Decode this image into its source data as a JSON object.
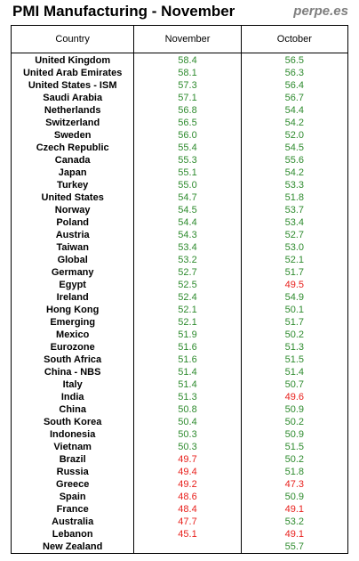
{
  "title": "PMI Manufacturing - November",
  "brand": "perpe.es",
  "colors": {
    "above": "#2e8b2e",
    "below": "#e8201c",
    "text": "#000000",
    "brand": "#7f7f7f"
  },
  "threshold": 50,
  "chart_data": {
    "type": "table",
    "columns": [
      "Country",
      "November",
      "October"
    ],
    "rows": [
      {
        "country": "United Kingdom",
        "november": "58.4",
        "october": "56.5"
      },
      {
        "country": "United Arab Emirates",
        "november": "58.1",
        "october": "56.3"
      },
      {
        "country": "United States - ISM",
        "november": "57.3",
        "october": "56.4"
      },
      {
        "country": "Saudi Arabia",
        "november": "57.1",
        "october": "56.7"
      },
      {
        "country": "Netherlands",
        "november": "56.8",
        "october": "54.4"
      },
      {
        "country": "Switzerland",
        "november": "56.5",
        "october": "54.2"
      },
      {
        "country": "Sweden",
        "november": "56.0",
        "october": "52.0"
      },
      {
        "country": "Czech Republic",
        "november": "55.4",
        "october": "54.5"
      },
      {
        "country": "Canada",
        "november": "55.3",
        "october": "55.6"
      },
      {
        "country": "Japan",
        "november": "55.1",
        "october": "54.2"
      },
      {
        "country": "Turkey",
        "november": "55.0",
        "october": "53.3"
      },
      {
        "country": "United States",
        "november": "54.7",
        "october": "51.8"
      },
      {
        "country": "Norway",
        "november": "54.5",
        "october": "53.7"
      },
      {
        "country": "Poland",
        "november": "54.4",
        "october": "53.4"
      },
      {
        "country": "Austria",
        "november": "54.3",
        "october": "52.7"
      },
      {
        "country": "Taiwan",
        "november": "53.4",
        "october": "53.0"
      },
      {
        "country": "Global",
        "november": "53.2",
        "october": "52.1"
      },
      {
        "country": "Germany",
        "november": "52.7",
        "october": "51.7"
      },
      {
        "country": "Egypt",
        "november": "52.5",
        "october": "49.5"
      },
      {
        "country": "Ireland",
        "november": "52.4",
        "october": "54.9"
      },
      {
        "country": "Hong Kong",
        "november": "52.1",
        "october": "50.1"
      },
      {
        "country": "Emerging",
        "november": "52.1",
        "october": "51.7"
      },
      {
        "country": "Mexico",
        "november": "51.9",
        "october": "50.2"
      },
      {
        "country": "Eurozone",
        "november": "51.6",
        "october": "51.3"
      },
      {
        "country": "South Africa",
        "november": "51.6",
        "october": "51.5"
      },
      {
        "country": "China - NBS",
        "november": "51.4",
        "october": "51.4"
      },
      {
        "country": "Italy",
        "november": "51.4",
        "october": "50.7"
      },
      {
        "country": "India",
        "november": "51.3",
        "october": "49.6"
      },
      {
        "country": "China",
        "november": "50.8",
        "october": "50.9"
      },
      {
        "country": "South Korea",
        "november": "50.4",
        "october": "50.2"
      },
      {
        "country": "Indonesia",
        "november": "50.3",
        "october": "50.9"
      },
      {
        "country": "Vietnam",
        "november": "50.3",
        "october": "51.5"
      },
      {
        "country": "Brazil",
        "november": "49.7",
        "october": "50.2"
      },
      {
        "country": "Russia",
        "november": "49.4",
        "october": "51.8"
      },
      {
        "country": "Greece",
        "november": "49.2",
        "october": "47.3"
      },
      {
        "country": "Spain",
        "november": "48.6",
        "october": "50.9"
      },
      {
        "country": "France",
        "november": "48.4",
        "october": "49.1"
      },
      {
        "country": "Australia",
        "november": "47.7",
        "october": "53.2"
      },
      {
        "country": "Lebanon",
        "november": "45.1",
        "october": "49.1"
      },
      {
        "country": "New Zealand",
        "november": "",
        "october": "55.7"
      }
    ]
  }
}
